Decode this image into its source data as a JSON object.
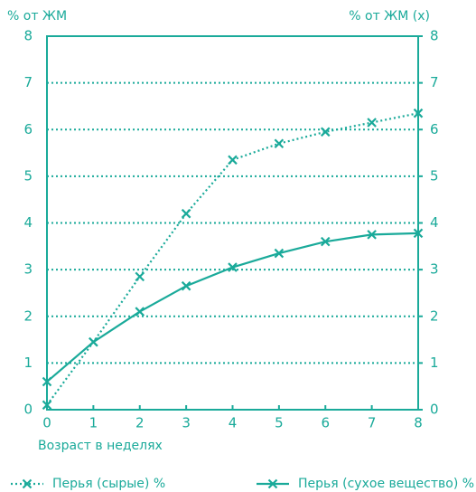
{
  "chart_data": {
    "type": "line",
    "y_label": "% от ЖМ",
    "y2_label": "% от ЖМ (x)",
    "x_label": "Возраст в неделях",
    "x": [
      0,
      1,
      2,
      3,
      4,
      5,
      6,
      7,
      8
    ],
    "series": [
      {
        "name": "Перья (сырые) %",
        "color": "#1aaa9a",
        "dash": "dotted",
        "values": [
          0.1,
          1.45,
          2.85,
          4.2,
          5.35,
          5.7,
          5.95,
          6.15,
          6.35
        ]
      },
      {
        "name": "Перья (сухое вещество) %",
        "color": "#1aaa9a",
        "dash": "solid",
        "values": [
          0.6,
          1.45,
          2.1,
          2.65,
          3.05,
          3.35,
          3.6,
          3.75,
          3.78
        ]
      }
    ],
    "xlim": [
      0,
      8
    ],
    "xticks": [
      0,
      1,
      2,
      3,
      4,
      5,
      6,
      7,
      8
    ],
    "ylim": [
      0,
      8
    ],
    "yticks": [
      0,
      1,
      2,
      3,
      4,
      5,
      6,
      7,
      8
    ],
    "y2lim": [
      0,
      8
    ],
    "y2ticks": [
      0,
      1,
      2,
      3,
      4,
      5,
      6,
      7,
      8
    ],
    "grid": true
  }
}
